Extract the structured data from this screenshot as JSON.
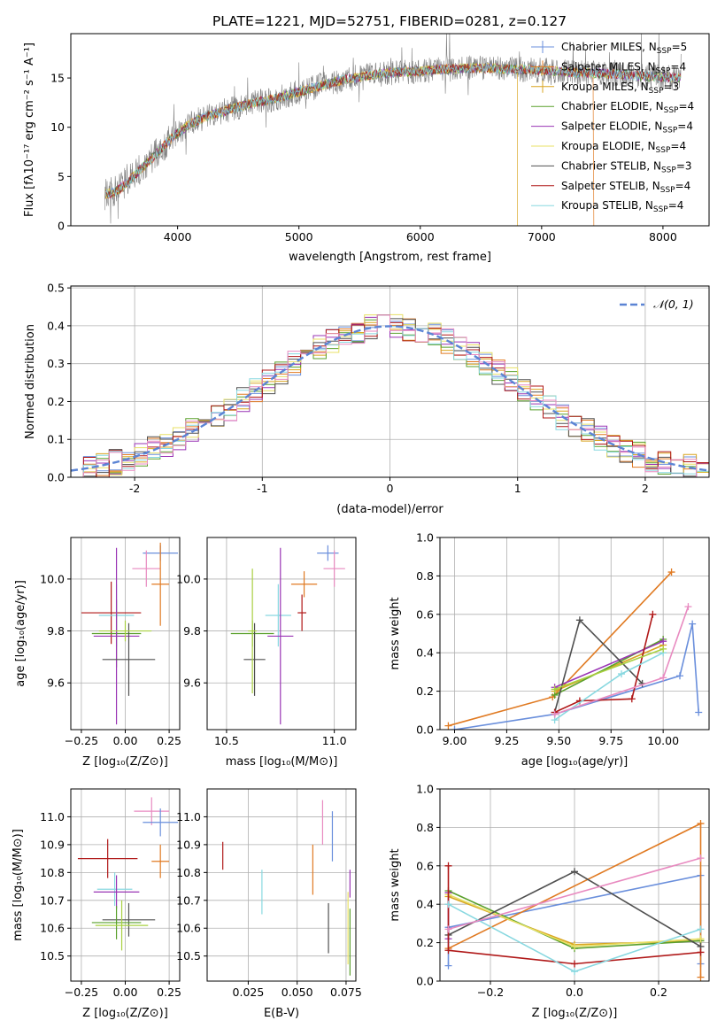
{
  "figure_title": "PLATE=1221, MJD=52751, FIBERID=0281, z=0.127",
  "colors": {
    "Chabrier MILES": "#6a8fdc",
    "Salpeter MILES": "#e07a22",
    "Kroupa MILES": "#d9a520",
    "Chabrier ELODIE": "#5aa02c",
    "Salpeter ELODIE": "#9a35b5",
    "Kroupa ELODIE": "#e8e066",
    "Chabrier STELIB": "#505050",
    "Salpeter STELIB": "#b01818",
    "Kroupa STELIB": "#88d8e0",
    "pink": "#e88ac0",
    "lime": "#a8d040",
    "data": "#808080",
    "normal": "#5b84d4"
  },
  "chart_data": [
    {
      "type": "line",
      "panel": "spectrum",
      "title": "PLATE=1221, MJD=52751, FIBERID=0281, z=0.127",
      "xlabel": "wavelength [Angstrom, rest frame]",
      "ylabel": "Flux [fλ10⁻¹⁷ erg cm⁻² s⁻¹ A⁻¹]",
      "xlim": [
        3120,
        8380
      ],
      "ylim": [
        0,
        19.5
      ],
      "xticks": [
        4000,
        5000,
        6000,
        7000,
        8000
      ],
      "yticks": [
        0,
        5,
        10,
        15
      ],
      "grid": false,
      "legend_position": "top-right",
      "continuum": {
        "x": [
          3400,
          3500,
          3600,
          3700,
          3800,
          3900,
          4000,
          4100,
          4200,
          4300,
          4400,
          4600,
          4800,
          5000,
          5200,
          5400,
          5600,
          5800,
          6000,
          6200,
          6400,
          6600,
          6800,
          7000,
          7200,
          7400,
          7600,
          7800,
          8000,
          8150
        ],
        "y": [
          3.2,
          3.5,
          4.6,
          5.8,
          7.0,
          8.3,
          9.4,
          10.3,
          10.9,
          11.3,
          11.7,
          12.4,
          12.9,
          13.6,
          14.3,
          14.9,
          15.3,
          15.6,
          15.7,
          15.9,
          16.0,
          16.0,
          15.9,
          15.8,
          15.6,
          15.5,
          15.4,
          15.2,
          15.1,
          15.0
        ]
      },
      "series": [
        {
          "name": "Chabrier MILES, N_SSP=5",
          "legend": "Chabrier MILES, N",
          "sub": "SSP",
          "suffix": "=5",
          "key": "Chabrier MILES",
          "marker": "+"
        },
        {
          "name": "Salpeter MILES, N_SSP=4",
          "legend": "Salpeter MILES, N",
          "sub": "SSP",
          "suffix": "=4",
          "key": "Salpeter MILES",
          "marker": "+"
        },
        {
          "name": "Kroupa MILES, N_SSP=3",
          "legend": "Kroupa MILES, N",
          "sub": "SSP",
          "suffix": "=3",
          "key": "Kroupa MILES",
          "marker": "+"
        },
        {
          "name": "Chabrier ELODIE, N_SSP=4",
          "legend": "Chabrier ELODIE, N",
          "sub": "SSP",
          "suffix": "=4",
          "key": "Chabrier ELODIE",
          "marker": ""
        },
        {
          "name": "Salpeter ELODIE, N_SSP=4",
          "legend": "Salpeter ELODIE, N",
          "sub": "SSP",
          "suffix": "=4",
          "key": "Salpeter ELODIE",
          "marker": ""
        },
        {
          "name": "Kroupa ELODIE, N_SSP=4",
          "legend": "Kroupa ELODIE, N",
          "sub": "SSP",
          "suffix": "=4",
          "key": "Kroupa ELODIE",
          "marker": ""
        },
        {
          "name": "Chabrier STELIB, N_SSP=3",
          "legend": "Chabrier STELIB, N",
          "sub": "SSP",
          "suffix": "=3",
          "key": "Chabrier STELIB",
          "marker": ""
        },
        {
          "name": "Salpeter STELIB, N_SSP=4",
          "legend": "Salpeter STELIB, N",
          "sub": "SSP",
          "suffix": "=4",
          "key": "Salpeter STELIB",
          "marker": ""
        },
        {
          "name": "Kroupa STELIB, N_SSP=4",
          "legend": "Kroupa STELIB, N",
          "sub": "SSP",
          "suffix": "=4",
          "key": "Kroupa STELIB",
          "marker": ""
        }
      ],
      "cutoffs": [
        {
          "key": "Kroupa MILES",
          "x": 6800
        },
        {
          "key": "Salpeter MILES",
          "x": 7430
        }
      ]
    },
    {
      "type": "line",
      "panel": "histogram",
      "xlabel": "(data-model)/error",
      "ylabel": "Normed distribution",
      "xlim": [
        -2.5,
        2.5
      ],
      "ylim": [
        0,
        0.505
      ],
      "xticks": [
        -2,
        -1,
        0,
        1,
        2
      ],
      "yticks": [
        0.0,
        0.1,
        0.2,
        0.3,
        0.4,
        0.5
      ],
      "grid": true,
      "legend_position": "top-right",
      "legend": "𝒩(0, 1)",
      "bin_width": 0.1
    },
    {
      "type": "scatter",
      "panel": "Z-age",
      "xlabel": "Z [log₁₀(Z/Z⊙)]",
      "ylabel": "age  [log₁₀(age/yr)]",
      "xlim": [
        -0.31,
        0.31
      ],
      "ylim": [
        9.42,
        10.16
      ],
      "xticks": [
        -0.25,
        0.0,
        0.25
      ],
      "xtick_labels": [
        "−0.25",
        "0.00",
        "0.25"
      ],
      "yticks": [
        9.6,
        9.8,
        10.0
      ],
      "grid": true,
      "points": [
        {
          "key": "Chabrier MILES",
          "x": 0.2,
          "y": 10.1,
          "ex": 0.1,
          "ey": 0.03
        },
        {
          "key": "pink",
          "x": 0.12,
          "y": 10.04,
          "ex": 0.08,
          "ey": 0.07
        },
        {
          "key": "Salpeter MILES",
          "x": 0.2,
          "y": 9.98,
          "ex": 0.05,
          "ey": 0.16
        },
        {
          "key": "Salpeter STELIB",
          "x": -0.08,
          "y": 9.87,
          "ex": 0.17,
          "ey": 0.12
        },
        {
          "key": "Kroupa STELIB",
          "x": -0.05,
          "y": 9.86,
          "ex": 0.1,
          "ey": 0.12
        },
        {
          "key": "Chabrier ELODIE",
          "x": -0.05,
          "y": 9.79,
          "ex": 0.14,
          "ey": 0.13
        },
        {
          "key": "Salpeter ELODIE",
          "x": -0.05,
          "y": 9.78,
          "ex": 0.13,
          "ey": 0.34
        },
        {
          "key": "Chabrier STELIB",
          "x": 0.02,
          "y": 9.69,
          "ex": 0.15,
          "ey": 0.14
        },
        {
          "key": "lime",
          "x": 0.0,
          "y": 9.8,
          "ex": 0.15,
          "ey": 0.04
        }
      ]
    },
    {
      "type": "scatter",
      "panel": "mass-age",
      "xlabel": "mass [log₁₀(M/M⊙)]",
      "ylabel": "",
      "xlim": [
        10.41,
        11.1
      ],
      "ylim": [
        9.42,
        10.16
      ],
      "xticks": [
        10.5,
        11.0
      ],
      "xtick_labels": [
        "10.5",
        "11.0"
      ],
      "yticks": [
        9.6,
        9.8,
        10.0
      ],
      "grid": true,
      "points": [
        {
          "key": "Chabrier MILES",
          "x": 10.97,
          "y": 10.1,
          "ex": 0.05,
          "ey": 0.03
        },
        {
          "key": "pink",
          "x": 11.0,
          "y": 10.04,
          "ex": 0.05,
          "ey": 0.07
        },
        {
          "key": "Salpeter MILES",
          "x": 10.86,
          "y": 9.98,
          "ex": 0.06,
          "ey": 0.05
        },
        {
          "key": "Salpeter STELIB",
          "x": 10.85,
          "y": 9.87,
          "ex": 0.02,
          "ey": 0.07
        },
        {
          "key": "Kroupa STELIB",
          "x": 10.74,
          "y": 9.86,
          "ex": 0.06,
          "ey": 0.12
        },
        {
          "key": "Chabrier ELODIE",
          "x": 10.62,
          "y": 9.79,
          "ex": 0.1,
          "ey": 0.05
        },
        {
          "key": "Salpeter ELODIE",
          "x": 10.75,
          "y": 9.78,
          "ex": 0.06,
          "ey": 0.34
        },
        {
          "key": "Chabrier STELIB",
          "x": 10.63,
          "y": 9.69,
          "ex": 0.05,
          "ey": 0.14
        },
        {
          "key": "lime",
          "x": 10.62,
          "y": 9.8,
          "ex": 0.02,
          "ey": 0.24
        }
      ]
    },
    {
      "type": "line",
      "panel": "age-weight",
      "xlabel": "age  [log₁₀(age/yr)]",
      "ylabel": "mass weight",
      "xlim": [
        8.93,
        10.22
      ],
      "ylim": [
        0,
        1.0
      ],
      "xticks": [
        9.0,
        9.25,
        9.5,
        9.75,
        10.0
      ],
      "xtick_labels": [
        "9.00",
        "9.25",
        "9.50",
        "9.75",
        "10.00"
      ],
      "yticks": [
        0.0,
        0.2,
        0.4,
        0.6,
        0.8,
        1.0
      ],
      "grid": true,
      "series": [
        {
          "key": "Chabrier MILES",
          "x": [
            9.0,
            9.48,
            10.08,
            10.14,
            10.17
          ],
          "y": [
            0.0,
            0.08,
            0.28,
            0.55,
            0.09
          ]
        },
        {
          "key": "Salpeter MILES",
          "x": [
            8.97,
            9.47,
            10.04
          ],
          "y": [
            0.02,
            0.17,
            0.82
          ]
        },
        {
          "key": "Kroupa MILES",
          "x": [
            9.48,
            10.0
          ],
          "y": [
            0.2,
            0.44
          ]
        },
        {
          "key": "Chabrier ELODIE",
          "x": [
            9.48,
            10.0
          ],
          "y": [
            0.18,
            0.47
          ]
        },
        {
          "key": "Salpeter ELODIE",
          "x": [
            9.48,
            10.0
          ],
          "y": [
            0.22,
            0.46
          ]
        },
        {
          "key": "Chabrier STELIB",
          "x": [
            9.48,
            9.6,
            9.9
          ],
          "y": [
            0.09,
            0.57,
            0.24
          ]
        },
        {
          "key": "Salpeter STELIB",
          "x": [
            9.48,
            9.6,
            9.85,
            9.95
          ],
          "y": [
            0.09,
            0.15,
            0.16,
            0.6
          ]
        },
        {
          "key": "Kroupa STELIB",
          "x": [
            9.48,
            9.8,
            10.0
          ],
          "y": [
            0.05,
            0.29,
            0.4
          ]
        },
        {
          "key": "pink",
          "x": [
            9.48,
            10.0,
            10.12
          ],
          "y": [
            0.08,
            0.27,
            0.64
          ]
        },
        {
          "key": "lime",
          "x": [
            9.48,
            10.0
          ],
          "y": [
            0.21,
            0.42
          ]
        }
      ]
    },
    {
      "type": "scatter",
      "panel": "Z-mass",
      "xlabel": "Z [log₁₀(Z/Z⊙)]",
      "ylabel": "mass [log₁₀(M/M⊙)]",
      "xlim": [
        -0.31,
        0.31
      ],
      "ylim": [
        10.41,
        11.1
      ],
      "xticks": [
        -0.25,
        0.0,
        0.25
      ],
      "xtick_labels": [
        "−0.25",
        "0.00",
        "0.25"
      ],
      "yticks": [
        10.5,
        10.6,
        10.7,
        10.8,
        10.9,
        11.0
      ],
      "grid": true,
      "points": [
        {
          "key": "pink",
          "x": 0.15,
          "y": 11.02,
          "ex": 0.1,
          "ey": 0.05
        },
        {
          "key": "Chabrier MILES",
          "x": 0.2,
          "y": 10.98,
          "ex": 0.1,
          "ey": 0.05
        },
        {
          "key": "Salpeter STELIB",
          "x": -0.1,
          "y": 10.85,
          "ex": 0.17,
          "ey": 0.07
        },
        {
          "key": "Salpeter MILES",
          "x": 0.2,
          "y": 10.84,
          "ex": 0.05,
          "ey": 0.06
        },
        {
          "key": "Kroupa STELIB",
          "x": -0.06,
          "y": 10.74,
          "ex": 0.1,
          "ey": 0.06
        },
        {
          "key": "Salpeter ELODIE",
          "x": -0.05,
          "y": 10.73,
          "ex": 0.13,
          "ey": 0.06
        },
        {
          "key": "Chabrier STELIB",
          "x": 0.02,
          "y": 10.63,
          "ex": 0.15,
          "ey": 0.06
        },
        {
          "key": "Chabrier ELODIE",
          "x": -0.05,
          "y": 10.62,
          "ex": 0.14,
          "ey": 0.06
        },
        {
          "key": "lime",
          "x": -0.02,
          "y": 10.61,
          "ex": 0.15,
          "ey": 0.09
        }
      ]
    },
    {
      "type": "scatter",
      "panel": "EBV-mass",
      "xlabel": "E(B-V)",
      "ylabel": "",
      "xlim": [
        0.004,
        0.08
      ],
      "ylim": [
        10.41,
        11.1
      ],
      "xticks": [
        0.025,
        0.05,
        0.075
      ],
      "xtick_labels": [
        "0.025",
        "0.050",
        "0.075"
      ],
      "yticks": [
        10.5,
        10.6,
        10.7,
        10.8,
        10.9,
        11.0
      ],
      "grid": true,
      "points": [
        {
          "key": "pink",
          "x": 0.063,
          "y": 10.98,
          "ex": 0.0,
          "ey": 0.08
        },
        {
          "key": "Chabrier MILES",
          "x": 0.068,
          "y": 10.93,
          "ex": 0.0,
          "ey": 0.09
        },
        {
          "key": "Salpeter STELIB",
          "x": 0.012,
          "y": 10.86,
          "ex": 0.0,
          "ey": 0.05
        },
        {
          "key": "Salpeter MILES",
          "x": 0.058,
          "y": 10.81,
          "ex": 0.0,
          "ey": 0.09
        },
        {
          "key": "Salpeter ELODIE",
          "x": 0.077,
          "y": 10.76,
          "ex": 0.0,
          "ey": 0.05
        },
        {
          "key": "Kroupa STELIB",
          "x": 0.032,
          "y": 10.73,
          "ex": 0.0,
          "ey": 0.08
        },
        {
          "key": "Kroupa ELODIE",
          "x": 0.076,
          "y": 10.6,
          "ex": 0.0,
          "ey": 0.13
        },
        {
          "key": "Chabrier STELIB",
          "x": 0.066,
          "y": 10.6,
          "ex": 0.0,
          "ey": 0.09
        },
        {
          "key": "Chabrier ELODIE",
          "x": 0.077,
          "y": 10.55,
          "ex": 0.0,
          "ey": 0.12
        }
      ]
    },
    {
      "type": "line",
      "panel": "Z-weight",
      "xlabel": "Z [log₁₀(Z/Z⊙)]",
      "ylabel": "mass weight",
      "xlim": [
        -0.32,
        0.32
      ],
      "ylim": [
        0,
        1.0
      ],
      "xticks": [
        -0.2,
        0.0,
        0.2
      ],
      "xtick_labels": [
        "−0.2",
        "0.0",
        "0.2"
      ],
      "yticks": [
        0.0,
        0.2,
        0.4,
        0.6,
        0.8,
        1.0
      ],
      "grid": true,
      "series": [
        {
          "key": "Chabrier MILES",
          "x": [
            -0.3,
            -0.3,
            0.3,
            0.3
          ],
          "y": [
            0.08,
            0.28,
            0.55,
            0.09
          ]
        },
        {
          "key": "Salpeter MILES",
          "x": [
            -0.3,
            0.3,
            0.3
          ],
          "y": [
            0.17,
            0.82,
            0.02
          ]
        },
        {
          "key": "Kroupa MILES",
          "x": [
            -0.3,
            0.0,
            0.3
          ],
          "y": [
            0.44,
            0.19,
            0.21
          ]
        },
        {
          "key": "Chabrier ELODIE",
          "x": [
            -0.3,
            0.0,
            0.3
          ],
          "y": [
            0.47,
            0.17,
            0.21
          ]
        },
        {
          "key": "Salpeter ELODIE",
          "x": [
            -0.3,
            -0.3
          ],
          "y": [
            0.22,
            0.46
          ]
        },
        {
          "key": "Kroupa ELODIE",
          "x": [
            -0.3,
            0.0,
            0.3
          ],
          "y": [
            0.45,
            0.18,
            0.22
          ]
        },
        {
          "key": "Chabrier STELIB",
          "x": [
            -0.3,
            0.0,
            0.3
          ],
          "y": [
            0.24,
            0.57,
            0.18
          ]
        },
        {
          "key": "Salpeter STELIB",
          "x": [
            -0.3,
            -0.3,
            0.0,
            0.3
          ],
          "y": [
            0.6,
            0.16,
            0.09,
            0.15
          ]
        },
        {
          "key": "Kroupa STELIB",
          "x": [
            -0.3,
            0.0,
            0.3
          ],
          "y": [
            0.4,
            0.05,
            0.27
          ]
        },
        {
          "key": "pink",
          "x": [
            -0.3,
            0.3
          ],
          "y": [
            0.27,
            0.64
          ]
        }
      ]
    }
  ]
}
